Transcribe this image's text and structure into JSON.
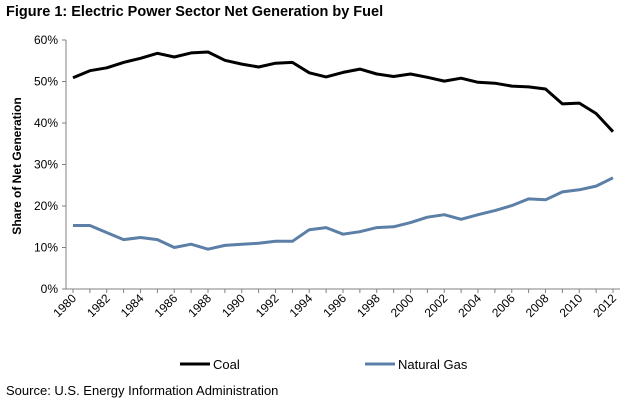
{
  "title": "Figure 1: Electric Power Sector Net Generation by Fuel",
  "source": "Source: U.S. Energy Information Administration",
  "chart_data": {
    "type": "line",
    "title": "Figure 1: Electric Power Sector Net Generation by Fuel",
    "xlabel": "",
    "ylabel": "Share of Net Generation",
    "x": [
      1980,
      1981,
      1982,
      1983,
      1984,
      1985,
      1986,
      1987,
      1988,
      1989,
      1990,
      1991,
      1992,
      1993,
      1994,
      1995,
      1996,
      1997,
      1998,
      1999,
      2000,
      2001,
      2002,
      2003,
      2004,
      2005,
      2006,
      2007,
      2008,
      2009,
      2010,
      2011,
      2012
    ],
    "x_ticks": [
      "1980",
      "1982",
      "1984",
      "1986",
      "1988",
      "1990",
      "1992",
      "1994",
      "1996",
      "1998",
      "2000",
      "2002",
      "2004",
      "2006",
      "2008",
      "2010",
      "2012"
    ],
    "y_ticks": [
      "0%",
      "10%",
      "20%",
      "30%",
      "40%",
      "50%",
      "60%"
    ],
    "ylim": [
      0,
      60
    ],
    "grid": false,
    "legend_position": "bottom",
    "series": [
      {
        "name": "Coal",
        "color": "#000000",
        "values": [
          50.9,
          52.6,
          53.3,
          54.6,
          55.6,
          56.8,
          55.9,
          56.9,
          57.1,
          55.1,
          54.2,
          53.5,
          54.4,
          54.6,
          52.1,
          51.1,
          52.2,
          53.0,
          51.8,
          51.2,
          51.8,
          51.0,
          50.1,
          50.8,
          49.8,
          49.6,
          48.9,
          48.7,
          48.2,
          44.6,
          44.8,
          42.3,
          37.9
        ]
      },
      {
        "name": "Natural Gas",
        "color": "#5b7fa6",
        "values": [
          15.3,
          15.3,
          13.6,
          11.9,
          12.4,
          11.9,
          10.0,
          10.8,
          9.6,
          10.5,
          10.8,
          11.0,
          11.5,
          11.5,
          14.3,
          14.8,
          13.2,
          13.8,
          14.8,
          15.0,
          16.0,
          17.3,
          17.9,
          16.8,
          17.9,
          18.9,
          20.1,
          21.7,
          21.5,
          23.4,
          23.9,
          24.8,
          26.8
        ]
      }
    ]
  }
}
